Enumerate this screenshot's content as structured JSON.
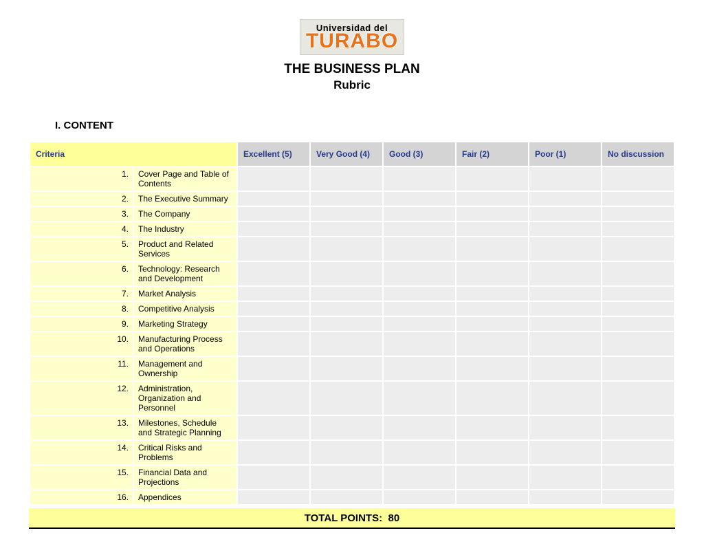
{
  "logo": {
    "top": "Universidad del",
    "bottom": "TURABO"
  },
  "title": {
    "main": "THE BUSINESS PLAN",
    "sub": "Rubric"
  },
  "section": "I. CONTENT",
  "table": {
    "criteria_header": "Criteria",
    "scale_headers": [
      "Excellent (5)",
      "Very Good (4)",
      "Good (3)",
      "Fair (2)",
      "Poor (1)",
      "No discussion"
    ],
    "rows": [
      {
        "num": "1.",
        "label": "Cover Page and Table of Contents"
      },
      {
        "num": "2.",
        "label": "The Executive Summary"
      },
      {
        "num": "3.",
        "label": "The Company"
      },
      {
        "num": "4.",
        "label": "The Industry"
      },
      {
        "num": "5.",
        "label": "Product and Related Services"
      },
      {
        "num": "6.",
        "label": "Technology: Research and Development"
      },
      {
        "num": "7.",
        "label": "Market Analysis"
      },
      {
        "num": "8.",
        "label": "Competitive Analysis"
      },
      {
        "num": "9.",
        "label": "Marketing Strategy"
      },
      {
        "num": "10.",
        "label": "Manufacturing Process and Operations"
      },
      {
        "num": "11.",
        "label": "Management and Ownership"
      },
      {
        "num": "12.",
        "label": "Administration, Organization and Personnel"
      },
      {
        "num": "13.",
        "label": "Milestones, Schedule and Strategic Planning"
      },
      {
        "num": "14.",
        "label": "Critical Risks and Problems"
      },
      {
        "num": "15.",
        "label": "Financial Data and Projections"
      },
      {
        "num": "16.",
        "label": "Appendices"
      }
    ]
  },
  "total": {
    "label": "TOTAL POINTS:",
    "value": "80"
  },
  "colors": {
    "header_criteria_bg": "#ffff99",
    "header_scale_bg": "#d4d4d4",
    "header_text": "#253a8a",
    "row_criteria_bg": "#ffffcc",
    "row_cell_bg": "#ededed",
    "total_bg": "#ffff99",
    "logo_orange": "#e8711c",
    "logo_bg": "#e8e8e0"
  },
  "fonts": {
    "body": "Verdana",
    "title_size_pt": 14,
    "header_size_pt": 9,
    "row_size_pt": 9,
    "total_size_pt": 11
  }
}
